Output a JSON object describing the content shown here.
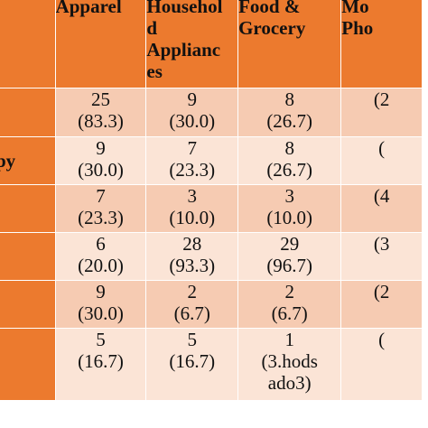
{
  "columns": [
    "",
    "Apparel",
    "Househol\nd\nApplianc\nes",
    "Food &\nGrocery",
    "Mo\nPho"
  ],
  "rows": [
    {
      "label": "",
      "cells": [
        [
          "25",
          "(83.3)"
        ],
        [
          "9",
          "(30.0)"
        ],
        [
          "8",
          "(26.7)"
        ],
        [
          "",
          "(2"
        ]
      ]
    },
    {
      "label": "py",
      "cells": [
        [
          "9",
          "(30.0)"
        ],
        [
          "7",
          "(23.3)"
        ],
        [
          "8",
          "(26.7)"
        ],
        [
          "",
          "("
        ]
      ]
    },
    {
      "label": "",
      "cells": [
        [
          "7",
          "(23.3)"
        ],
        [
          "3",
          "(10.0)"
        ],
        [
          "3",
          "(10.0)"
        ],
        [
          "",
          "(4"
        ]
      ]
    },
    {
      "label": "",
      "cells": [
        [
          "6",
          "(20.0)"
        ],
        [
          "28",
          "(93.3)"
        ],
        [
          "29",
          "(96.7)"
        ],
        [
          "",
          "(3"
        ]
      ]
    },
    {
      "label": "",
      "cells": [
        [
          "9",
          "(30.0)"
        ],
        [
          "2",
          "(6.7)"
        ],
        [
          "2",
          "(6.7)"
        ],
        [
          "",
          "(2"
        ]
      ]
    },
    {
      "label": "",
      "cells": [
        [
          "5",
          "(16.7)"
        ],
        [
          "5",
          "(16.7)"
        ],
        [
          "1",
          "(3.hods",
          "ado3)"
        ],
        [
          "",
          "("
        ]
      ]
    }
  ],
  "colors": {
    "header_bg": "#ec7a2e",
    "row_odd_bg": "#f6cbb2",
    "row_even_bg": "#fbe4d6",
    "border": "#ffffff"
  }
}
